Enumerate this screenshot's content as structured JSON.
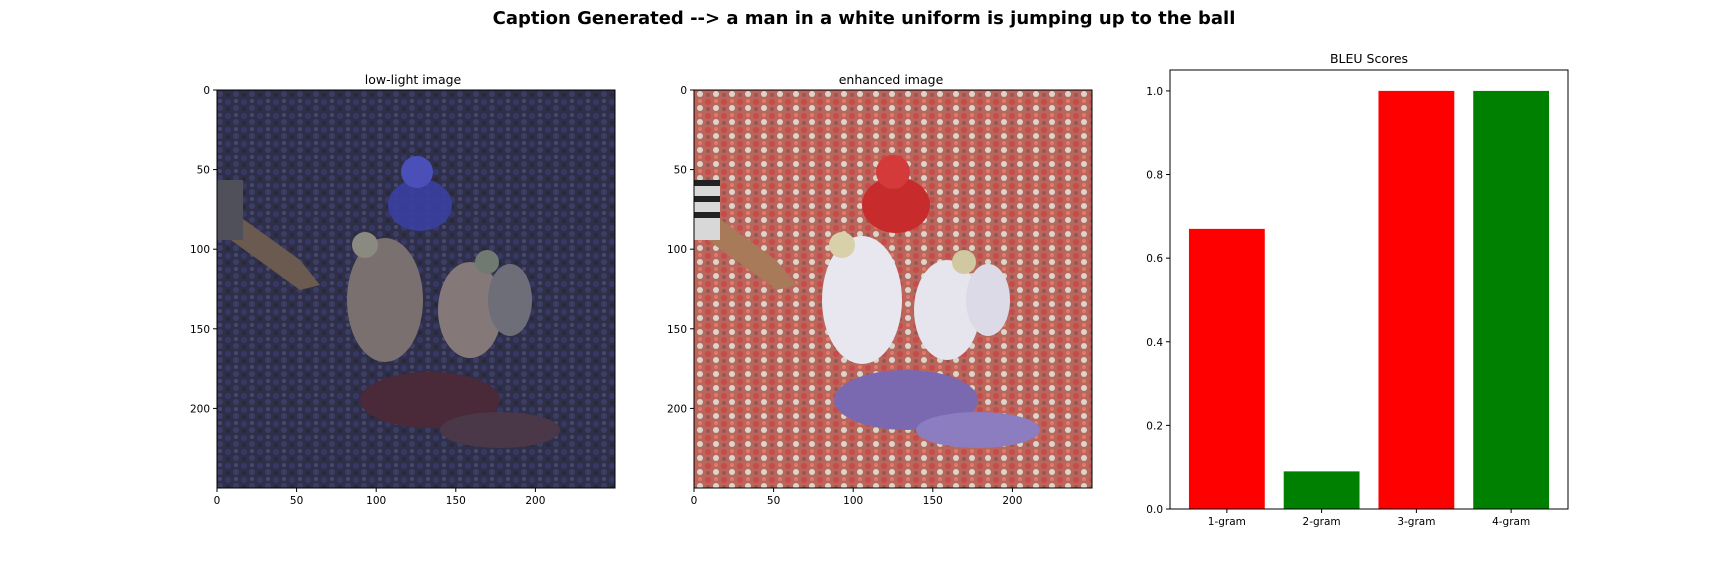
{
  "figure": {
    "suptitle": "Caption Generated --> a man in a white uniform is jumping up to the ball"
  },
  "panels": {
    "low_light": {
      "title": "low-light image",
      "image": "football-players-scene-dark"
    },
    "enhanced": {
      "title": "enhanced image",
      "image": "football-players-scene-enhanced"
    }
  },
  "chart_data": [
    {
      "type": "image",
      "title": "low-light image",
      "xticks": [
        "0",
        "50",
        "100",
        "150",
        "200"
      ],
      "yticks": [
        "0",
        "50",
        "100",
        "150",
        "200"
      ],
      "extent": [
        0,
        250,
        250,
        0
      ]
    },
    {
      "type": "image",
      "title": "enhanced image",
      "xticks": [
        "0",
        "50",
        "100",
        "150",
        "200"
      ],
      "yticks": [
        "0",
        "50",
        "100",
        "150",
        "200"
      ],
      "extent": [
        0,
        250,
        250,
        0
      ]
    },
    {
      "type": "bar",
      "title": "BLEU Scores",
      "categories": [
        "1-gram",
        "2-gram",
        "3-gram",
        "4-gram"
      ],
      "values": [
        0.67,
        0.09,
        1.0,
        1.0
      ],
      "colors": [
        "#ff0000",
        "#008000",
        "#ff0000",
        "#008000"
      ],
      "ylim": [
        0,
        1.05
      ],
      "yticks": [
        "0.0",
        "0.2",
        "0.4",
        "0.6",
        "0.8",
        "1.0"
      ],
      "grid": false,
      "xlabel": "",
      "ylabel": ""
    }
  ]
}
